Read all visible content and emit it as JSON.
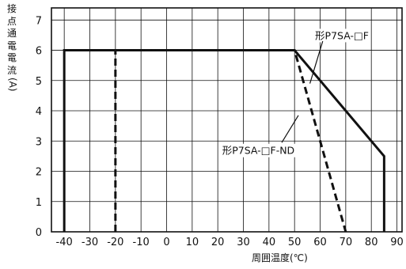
{
  "chart_data": {
    "type": "line",
    "title": "",
    "ylabel": "接点通電電流(A)",
    "xlabel": "周囲温度(℃)",
    "xlim": [
      -45,
      92
    ],
    "ylim": [
      0,
      7.4
    ],
    "grid": true,
    "x_ticks": [
      "-40",
      "-30",
      "-20",
      "-10",
      "0",
      "10",
      "20",
      "30",
      "40",
      "50",
      "60",
      "70",
      "80",
      "90"
    ],
    "y_ticks": [
      "0",
      "1",
      "2",
      "3",
      "4",
      "5",
      "6",
      "7"
    ],
    "series": [
      {
        "name": "形P7SA-□F",
        "style": "solid",
        "points": [
          [
            -40,
            0
          ],
          [
            -40,
            6
          ],
          [
            50,
            6
          ],
          [
            85,
            2.5
          ],
          [
            85,
            0
          ]
        ]
      },
      {
        "name": "形P7SA-□F-ND",
        "style": "dashed",
        "points": [
          [
            -20,
            0
          ],
          [
            -20,
            6
          ],
          [
            50,
            6
          ],
          [
            70,
            0
          ]
        ]
      }
    ],
    "annotations": [
      {
        "text": "形P7SA-□F",
        "series": 0,
        "text_at": [
          58,
          6.5
        ],
        "arrow_from": [
          61,
          6.3
        ],
        "arrow_to": [
          56,
          4.9
        ]
      },
      {
        "text": "形P7SA-□F-ND",
        "series": 1,
        "text_at": [
          50,
          2.7
        ],
        "arrow_from": [
          45,
          2.95
        ],
        "arrow_to": [
          51.5,
          3.85
        ]
      }
    ],
    "colors": {
      "line": "#111111",
      "grid": "#111111"
    }
  }
}
